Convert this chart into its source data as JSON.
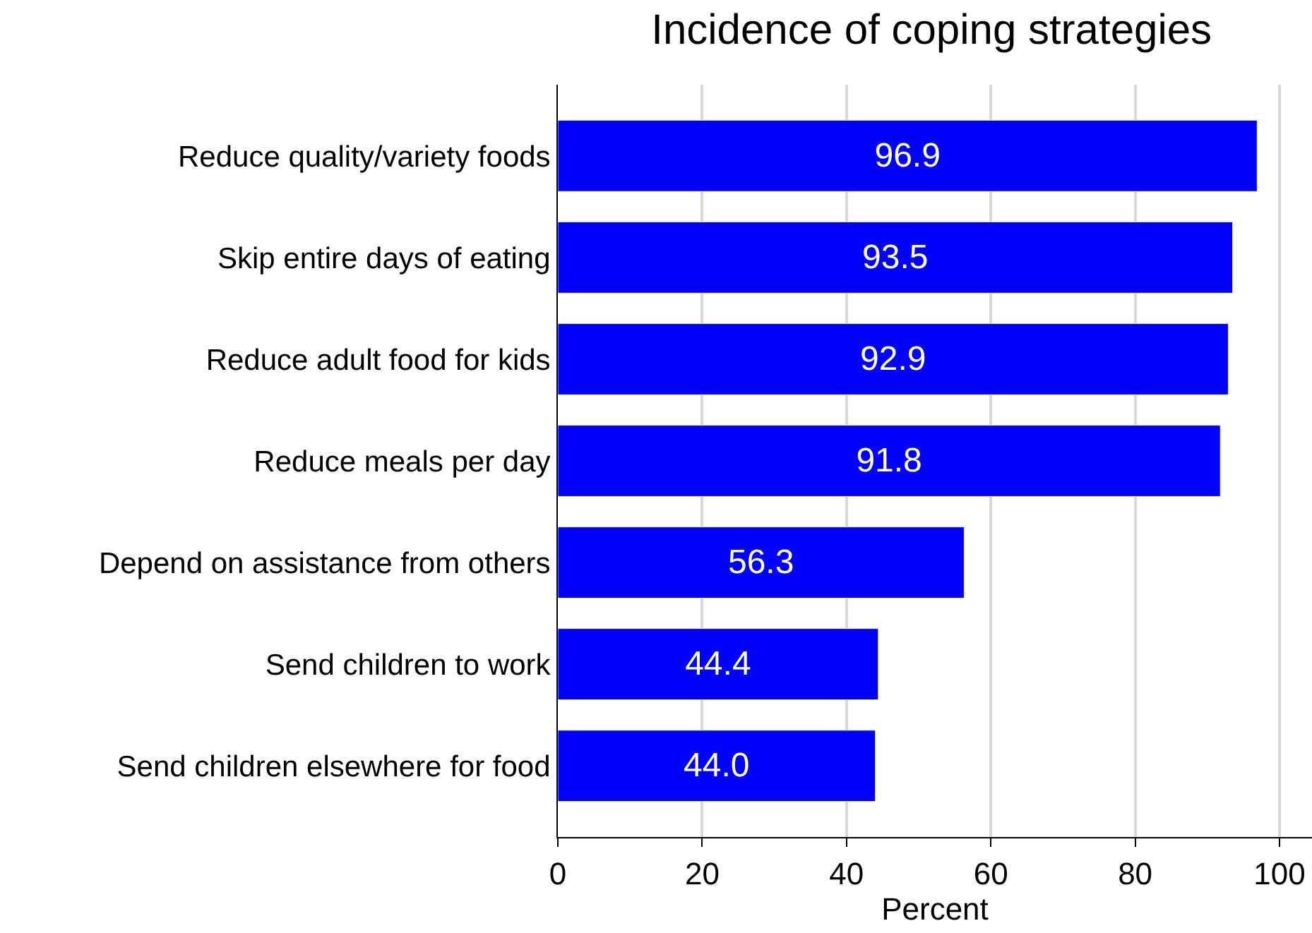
{
  "chart_data": {
    "type": "bar",
    "orientation": "horizontal",
    "title": "Incidence of coping strategies",
    "xlabel": "Percent",
    "categories": [
      "Reduce quality/variety foods",
      "Skip entire days of eating",
      "Reduce adult food for kids",
      "Reduce meals per day",
      "Depend on assistance from others",
      "Send children to work",
      "Send children elsewhere for food"
    ],
    "values": [
      96.9,
      93.5,
      92.9,
      91.8,
      56.3,
      44.4,
      44.0
    ],
    "value_labels": [
      "96.9",
      "93.5",
      "92.9",
      "91.8",
      "56.3",
      "44.4",
      "44.0"
    ],
    "color": "#0000ff",
    "xlim": [
      0,
      104.5
    ],
    "xticks": [
      0,
      20,
      40,
      60,
      80,
      100
    ],
    "grid": "x",
    "legend": false
  }
}
